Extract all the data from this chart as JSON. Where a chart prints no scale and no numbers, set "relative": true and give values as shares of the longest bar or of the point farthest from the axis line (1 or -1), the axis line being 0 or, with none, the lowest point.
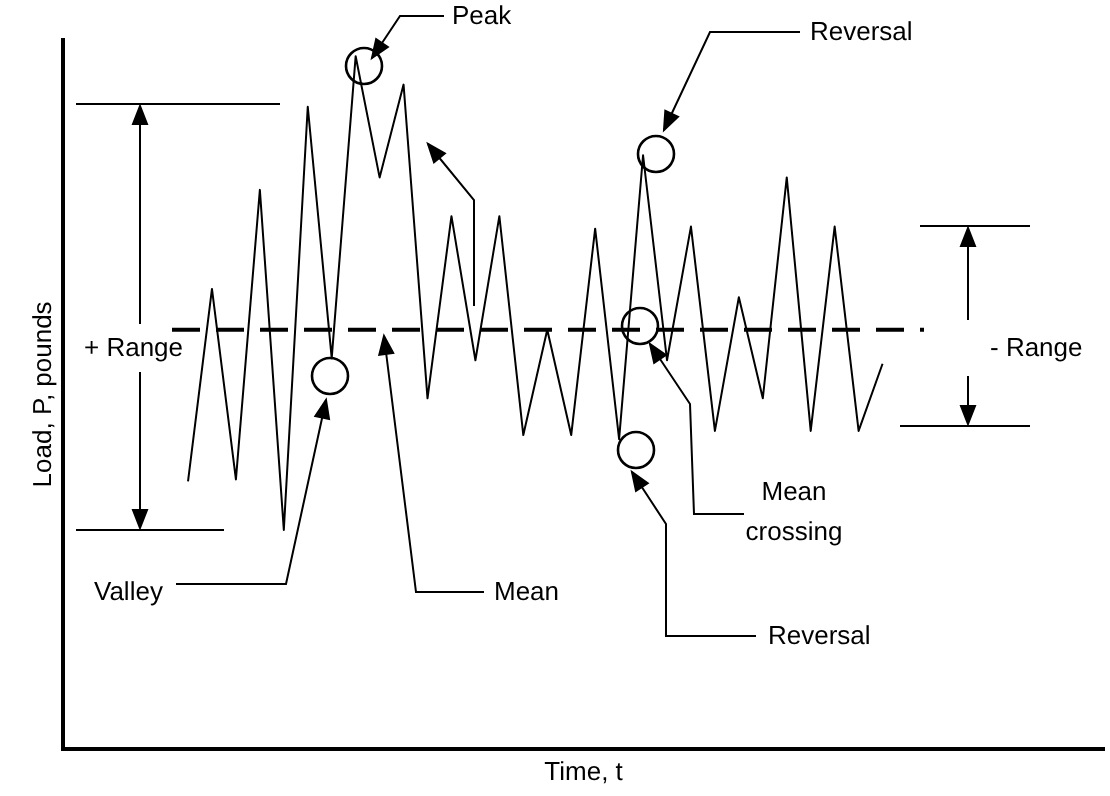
{
  "chart_data": {
    "type": "line",
    "relative": true,
    "xlabel": "Time, t",
    "ylabel": "Load, P, pounds",
    "categories": [
      null,
      null,
      null,
      null,
      null,
      null,
      null,
      null,
      null,
      null,
      null,
      null,
      null,
      null,
      null,
      null,
      null,
      null,
      null,
      null,
      null,
      null,
      null,
      null,
      null,
      null,
      null,
      null,
      null,
      null
    ],
    "series": [
      {
        "color": "#000000",
        "values": [
          0.386,
          0.664,
          0.389,
          0.807,
          0.316,
          0.927,
          0.564,
          1,
          0.825,
          0.959,
          0.506,
          0.769,
          0.561,
          0.769,
          0.453,
          0.605,
          0.453,
          0.751,
          0.447,
          0.857,
          0.561,
          0.754,
          0.459,
          0.652,
          0.506,
          0.825,
          0.459,
          0.754,
          0.459,
          0.556
        ]
      }
    ],
    "ref_lines": [
      {
        "axis": "y",
        "value": 0.605,
        "label": "Mean",
        "line_style": "dashed",
        "color": "#000000"
      }
    ],
    "annotations": [
      "Peak",
      "Reversal",
      "+ Range",
      "- Range",
      "Valley",
      "Mean crossing",
      "Reversal"
    ],
    "grid": false,
    "legend": false,
    "marker": "none",
    "line_style": "solid"
  }
}
